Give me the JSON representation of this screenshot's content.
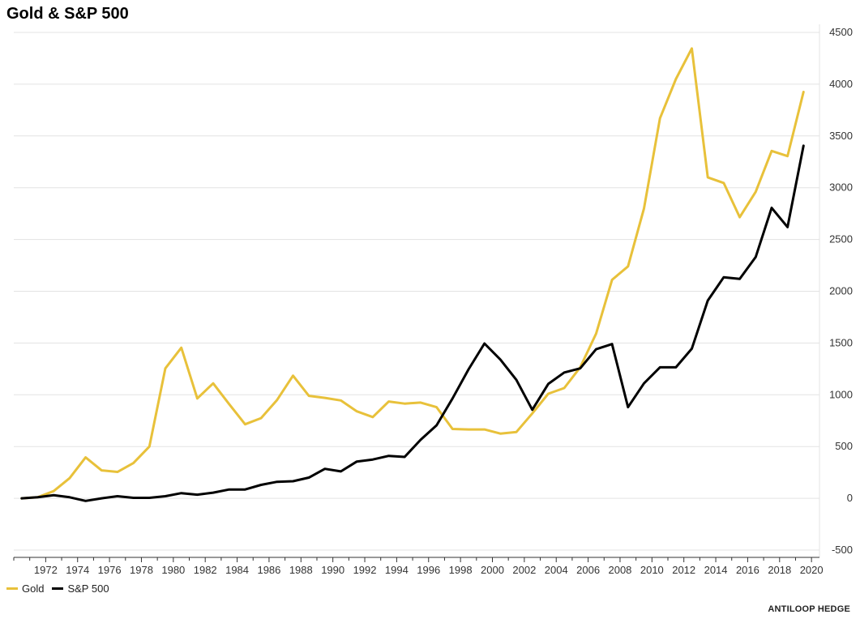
{
  "chart_data": {
    "type": "line",
    "title": "Gold & S&P 500",
    "xlabel": "",
    "ylabel": "",
    "xlim": [
      1970,
      2020.5
    ],
    "ylim": [
      -500,
      4500
    ],
    "x_ticks": [
      1972,
      1974,
      1976,
      1978,
      1980,
      1982,
      1984,
      1986,
      1988,
      1990,
      1992,
      1994,
      1996,
      1998,
      2000,
      2002,
      2004,
      2006,
      2008,
      2010,
      2012,
      2014,
      2016,
      2018,
      2020
    ],
    "y_ticks": [
      -500,
      0,
      500,
      1000,
      1500,
      2000,
      2500,
      3000,
      3500,
      4000,
      4500
    ],
    "grid": "horizontal",
    "y_axis_side": "right",
    "legend_position": "bottom-left",
    "source": "ANTILOOP HEDGE",
    "series": [
      {
        "name": "Gold",
        "color": "#e8c13a",
        "x": [
          1970.5,
          1971.5,
          1972.5,
          1973.5,
          1974.5,
          1975.5,
          1976.5,
          1977.5,
          1978.5,
          1979.5,
          1980.5,
          1981.5,
          1982.5,
          1983.5,
          1984.5,
          1985.5,
          1986.5,
          1987.5,
          1988.5,
          1989.5,
          1990.5,
          1991.5,
          1992.5,
          1993.5,
          1994.5,
          1995.5,
          1996.5,
          1997.5,
          1998.5,
          1999.5,
          2000.5,
          2001.5,
          2002.5,
          2003.5,
          2004.5,
          2005.5,
          2006.5,
          2007.5,
          2008.5,
          2009.5,
          2010.5,
          2011.5,
          2012.5,
          2013.5,
          2014.5,
          2015.5,
          2016.5,
          2017.5,
          2018.5,
          2019.5
        ],
        "values": [
          0,
          10,
          70,
          195,
          395,
          270,
          255,
          340,
          500,
          1255,
          1455,
          965,
          1110,
          910,
          715,
          775,
          950,
          1185,
          990,
          970,
          945,
          840,
          785,
          935,
          915,
          925,
          880,
          670,
          665,
          665,
          625,
          640,
          820,
          1010,
          1065,
          1265,
          1590,
          2110,
          2240,
          2800,
          3670,
          4050,
          4345,
          3100,
          3045,
          2715,
          2960,
          3355,
          3305,
          3925
        ]
      },
      {
        "name": "S&P 500",
        "color": "#000000",
        "x": [
          1970.5,
          1971.5,
          1972.5,
          1973.5,
          1974.5,
          1975.5,
          1976.5,
          1977.5,
          1978.5,
          1979.5,
          1980.5,
          1981.5,
          1982.5,
          1983.5,
          1984.5,
          1985.5,
          1986.5,
          1987.5,
          1988.5,
          1989.5,
          1990.5,
          1991.5,
          1992.5,
          1993.5,
          1994.5,
          1995.5,
          1996.5,
          1997.5,
          1998.5,
          1999.5,
          2000.5,
          2001.5,
          2002.5,
          2003.5,
          2004.5,
          2005.5,
          2006.5,
          2007.5,
          2008.5,
          2009.5,
          2010.5,
          2011.5,
          2012.5,
          2013.5,
          2014.5,
          2015.5,
          2016.5,
          2017.5,
          2018.5,
          2019.5
        ],
        "values": [
          0,
          10,
          30,
          10,
          -25,
          0,
          20,
          5,
          5,
          20,
          50,
          35,
          55,
          85,
          85,
          130,
          160,
          165,
          200,
          285,
          260,
          355,
          375,
          410,
          400,
          565,
          705,
          965,
          1245,
          1495,
          1340,
          1145,
          855,
          1105,
          1215,
          1255,
          1440,
          1490,
          880,
          1110,
          1265,
          1265,
          1445,
          1910,
          2135,
          2120,
          2330,
          2805,
          2620,
          3405
        ]
      }
    ]
  }
}
